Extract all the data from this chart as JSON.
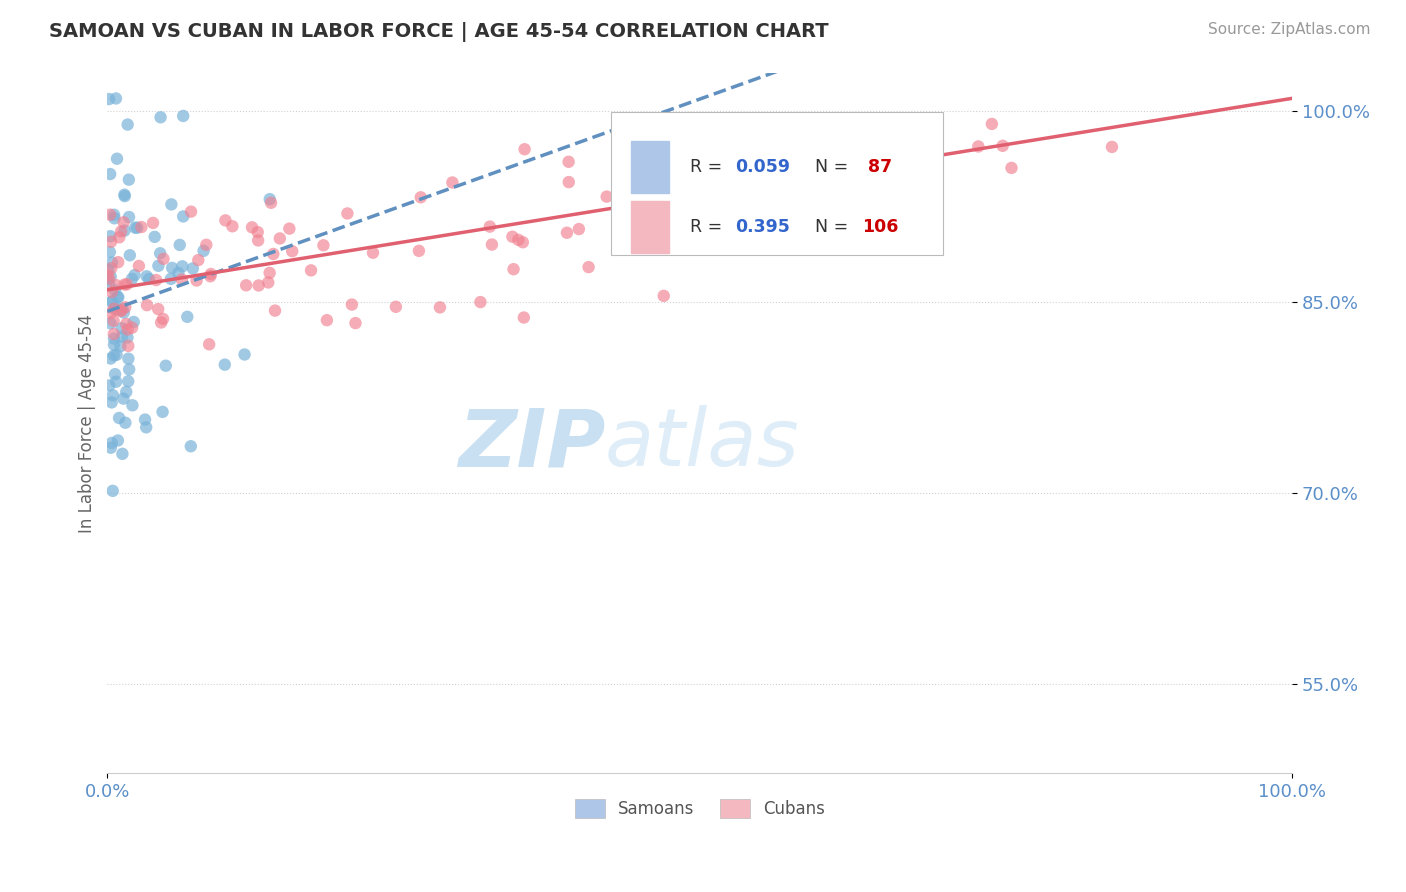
{
  "title": "SAMOAN VS CUBAN IN LABOR FORCE | AGE 45-54 CORRELATION CHART",
  "source_text": "Source: ZipAtlas.com",
  "ylabel": "In Labor Force | Age 45-54",
  "xmin": 0.0,
  "xmax": 1.0,
  "ymin": 0.48,
  "ymax": 1.03,
  "yticks": [
    0.55,
    0.7,
    0.85,
    1.0
  ],
  "ytick_labels": [
    "55.0%",
    "70.0%",
    "85.0%",
    "100.0%"
  ],
  "xticks": [
    0.0,
    1.0
  ],
  "xtick_labels": [
    "0.0%",
    "100.0%"
  ],
  "samoan_color": "#7ab3d9",
  "cuban_color": "#f08090",
  "samoan_line_color": "#6090c0",
  "cuban_line_color": "#e06070",
  "watermark_zip": "ZIP",
  "watermark_atlas": "atlas",
  "background_color": "#ffffff",
  "grid_color": "#cccccc",
  "title_color": "#333333",
  "source_color": "#999999",
  "tick_color": "#5b8fc9",
  "ylabel_color": "#666666",
  "legend_r_n_text_color": "#333333",
  "legend_r_val_color": "#3366cc",
  "legend_n_val_color": "#cc0000",
  "samoan_scatter_seed": 42,
  "cuban_scatter_seed": 99,
  "n_samoan": 87,
  "n_cuban": 106
}
